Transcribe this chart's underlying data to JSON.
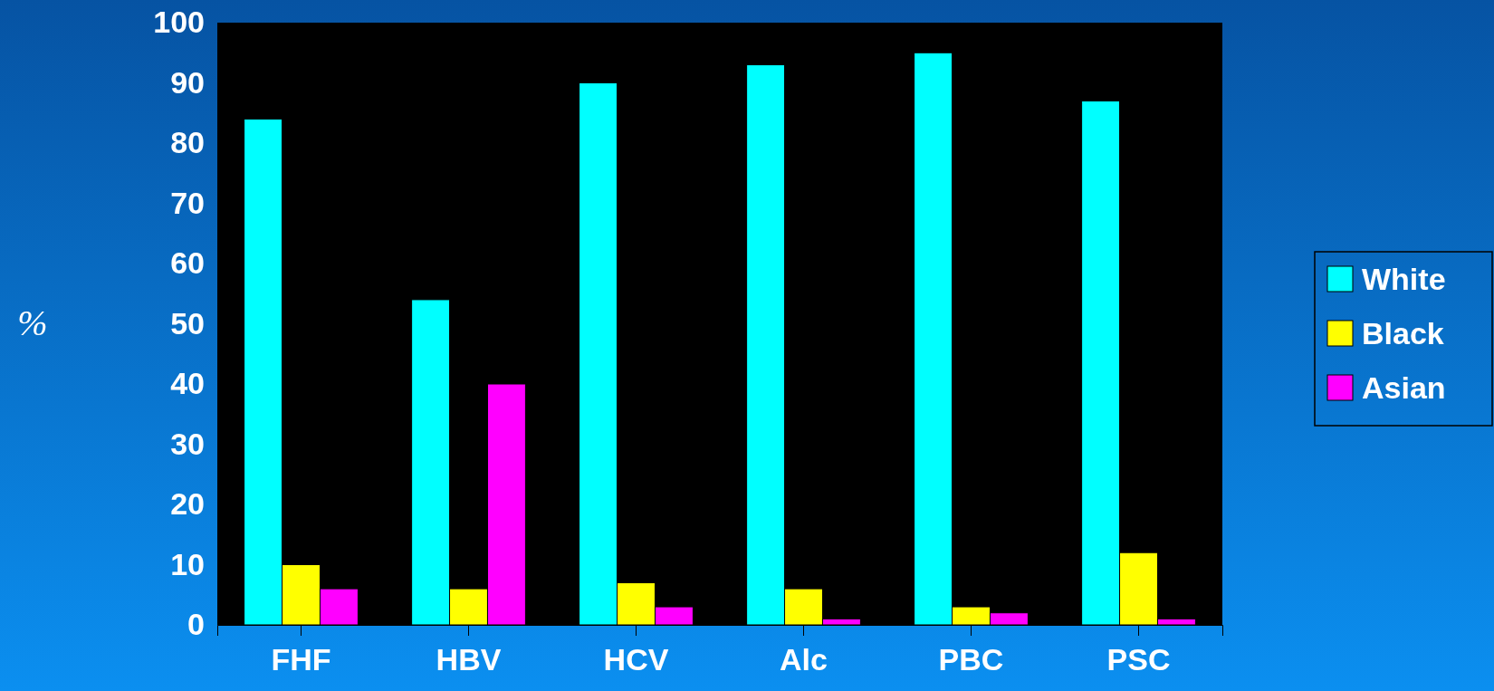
{
  "chart_data": {
    "type": "bar",
    "ylabel": "%",
    "categories": [
      "FHF",
      "HBV",
      "HCV",
      "Alc",
      "PBC",
      "PSC"
    ],
    "series": [
      {
        "name": "White",
        "color": "#00ffff",
        "values": [
          84,
          54,
          90,
          93,
          95,
          87
        ]
      },
      {
        "name": "Black",
        "color": "#ffff00",
        "values": [
          10,
          6,
          7,
          6,
          3,
          12
        ]
      },
      {
        "name": "Asian",
        "color": "#ff00ff",
        "values": [
          6,
          40,
          3,
          1,
          2,
          1
        ]
      }
    ],
    "ylim": [
      0,
      100
    ],
    "yticks": [
      0,
      10,
      20,
      30,
      40,
      50,
      60,
      70,
      80,
      90,
      100
    ],
    "grid": false,
    "legend": "right"
  }
}
